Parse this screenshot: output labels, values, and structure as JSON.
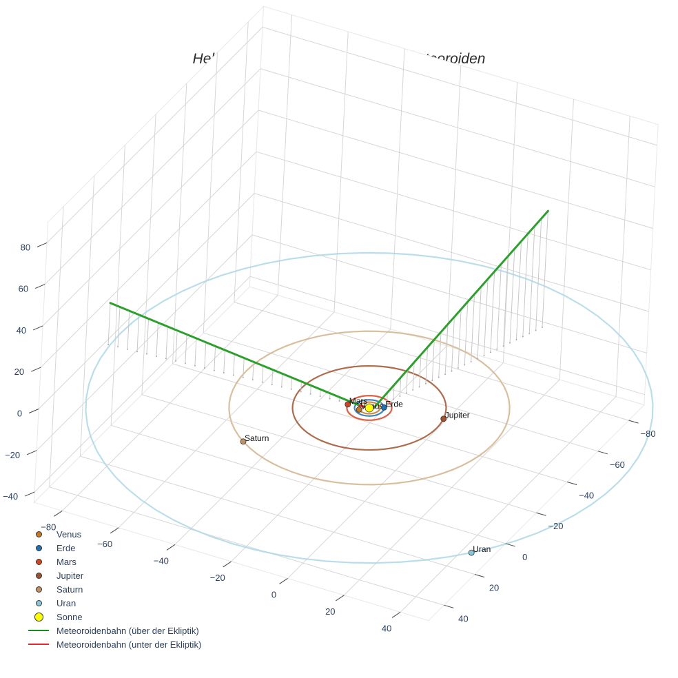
{
  "chart_data": {
    "type": "scatter3d",
    "title": "Heliozentrische Umlaufbahn des Meteoroiden",
    "axes": {
      "x": {
        "ticks": [
          -80,
          -60,
          -40,
          -20,
          0,
          20,
          40
        ],
        "range": [
          -90,
          50
        ]
      },
      "y": {
        "ticks": [
          -80,
          -60,
          -40,
          -20,
          0,
          20,
          40
        ],
        "range": [
          -90,
          50
        ]
      },
      "z": {
        "ticks": [
          80,
          60,
          40,
          20,
          0,
          -20,
          -40
        ],
        "range": [
          -45,
          90
        ]
      }
    },
    "grid": true,
    "legend_position": "bottom-left",
    "planets": [
      {
        "name": "Venus",
        "color": "#c8781e",
        "x": -0.5,
        "y": 0.5,
        "z": 0,
        "orbit_r": 0.72,
        "orbit_color": "#c8781e"
      },
      {
        "name": "Erde",
        "color": "#1f6fb4",
        "x": 0.8,
        "y": -0.5,
        "z": 0,
        "orbit_r": 1.0,
        "orbit_color": "#1f6fb4"
      },
      {
        "name": "Mars",
        "color": "#d9411e",
        "x": -1.4,
        "y": 0.3,
        "z": 0,
        "orbit_r": 1.52,
        "orbit_color": "#d9411e"
      },
      {
        "name": "Jupiter",
        "color": "#a0522d",
        "x": 4.9,
        "y": -1.2,
        "z": 0,
        "orbit_r": 5.2,
        "orbit_color": "#a0522d"
      },
      {
        "name": "Saturn",
        "color": "#c09060",
        "x": -4.6,
        "y": 6.5,
        "z": 0,
        "orbit_r": 9.5,
        "orbit_color": "#d2b48c"
      },
      {
        "name": "Uran",
        "color": "#87c8dc",
        "x": 13.0,
        "y": 11.0,
        "z": 0,
        "orbit_r": 19.2,
        "orbit_color": "#add8e6"
      }
    ],
    "sun": {
      "name": "Sonne",
      "color": "#ffff00",
      "x": 0,
      "y": 0,
      "z": 0
    },
    "meteoroid_path": {
      "above": {
        "name": "Meteoroidenbahn (über der Ekliptik)",
        "color": "#2ca02c",
        "segments": [
          [
            [
              -88.6,
              7.4,
              20
            ],
            [
              -3.5,
              0.5,
              0.3
            ]
          ],
          [
            [
              1.5,
              -0.3,
              0.5
            ],
            [
              25.2,
              -66.2,
              56
            ]
          ]
        ]
      },
      "below": {
        "name": "Meteoroidenbahn (unter der Ekliptik)",
        "color": "#d62728",
        "segments": [
          [
            [
              -3.5,
              0.5,
              0.3
            ],
            [
              0.5,
              0.0,
              -0.2
            ],
            [
              1.5,
              -0.3,
              0.5
            ]
          ]
        ]
      }
    }
  },
  "legend": [
    {
      "label": "Venus",
      "type": "dot",
      "color": "#c8781e",
      "size": 9
    },
    {
      "label": "Erde",
      "type": "dot",
      "color": "#1f6fb4",
      "size": 9
    },
    {
      "label": "Mars",
      "type": "dot",
      "color": "#d9411e",
      "size": 9
    },
    {
      "label": "Jupiter",
      "type": "dot",
      "color": "#a0522d",
      "size": 9
    },
    {
      "label": "Saturn",
      "type": "dot",
      "color": "#c09060",
      "size": 9
    },
    {
      "label": "Uran",
      "type": "dot",
      "color": "#87c8dc",
      "size": 9
    },
    {
      "label": "Sonne",
      "type": "dot",
      "color": "#ffff00",
      "size": 13
    },
    {
      "label": "Meteoroidenbahn (über der Ekliptik)",
      "type": "line",
      "color": "#1a8a1a"
    },
    {
      "label": "Meteoroidenbahn (unter der Ekliptik)",
      "type": "line",
      "color": "#e8272a"
    }
  ]
}
